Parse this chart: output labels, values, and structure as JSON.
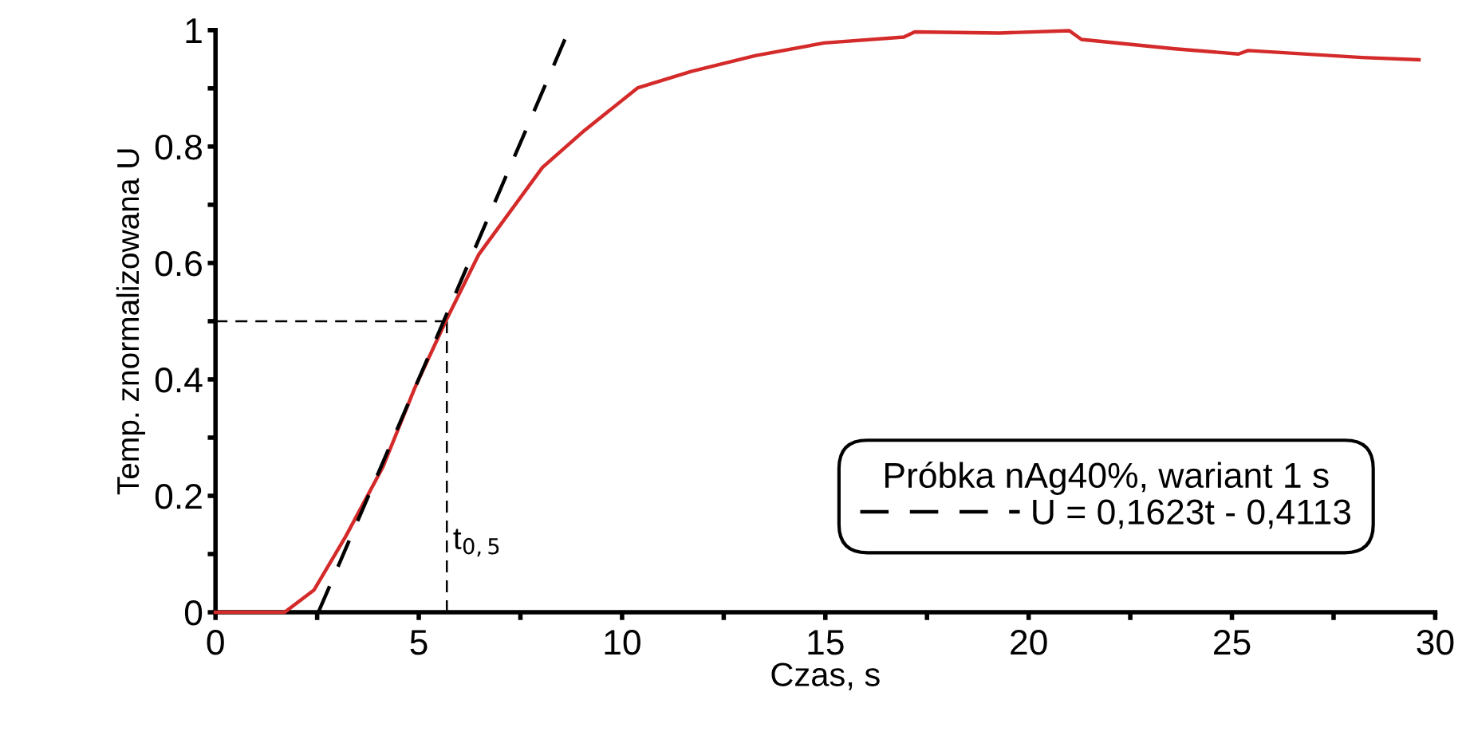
{
  "chart_data": {
    "type": "line",
    "xlabel": "Czas, s",
    "ylabel": "Temp. znormalizowana U",
    "legend_title": "Próbka nAg40%, wariant 1 s",
    "xlim": [
      0,
      30
    ],
    "ylim": [
      0,
      1
    ],
    "xticks": [
      0,
      {
        "value": 2.5,
        "label": null
      },
      5,
      {
        "value": 7.5,
        "label": null
      },
      10,
      {
        "value": 12.5,
        "label": null
      },
      15,
      {
        "value": 17.5,
        "label": null
      },
      20,
      {
        "value": 22.5,
        "label": null
      },
      25,
      {
        "value": 27.5,
        "label": null
      },
      30
    ],
    "yticks": [
      0,
      {
        "value": 0.1,
        "label": null
      },
      0.2,
      {
        "value": 0.3,
        "label": null
      },
      0.4,
      {
        "value": 0.5,
        "label": null
      },
      0.6,
      {
        "value": 0.7,
        "label": null
      },
      0.8,
      {
        "value": 0.9,
        "label": null
      },
      1
    ],
    "grid": false,
    "legend": "bottom right",
    "marker": "none",
    "series": [
      {
        "color": "#d42a2a",
        "line_style": "solid",
        "x": [
          0,
          1.24,
          1.7,
          2.42,
          3.2,
          4.12,
          4.9,
          5.69,
          6.47,
          8.04,
          9.08,
          10.39,
          11.7,
          13.27,
          14.97,
          16.93,
          17.2,
          19.28,
          21.0,
          21.3,
          23.6,
          25.16,
          25.4,
          28.2,
          29.6
        ],
        "values": [
          0,
          0,
          0,
          0.038,
          0.13,
          0.25,
          0.385,
          0.504,
          0.614,
          0.764,
          0.828,
          0.901,
          0.929,
          0.956,
          0.978,
          0.988,
          0.997,
          0.995,
          0.999,
          0.984,
          0.968,
          0.959,
          0.965,
          0.953,
          0.949
        ]
      },
      {
        "name": "U = 0,1623t - 0,4113",
        "color": "#000000",
        "line_style": "dashed",
        "x": [
          2.53,
          8.63
        ],
        "values": [
          0,
          0.99
        ]
      }
    ],
    "ref_lines": [
      {
        "axis": "y",
        "value": 0.5,
        "color": "#000000",
        "line_style": "dashed"
      },
      {
        "axis": "x",
        "value": 5.69,
        "label": "t$_{0,5}$",
        "color": "#000000",
        "line_style": "dashed"
      }
    ]
  }
}
